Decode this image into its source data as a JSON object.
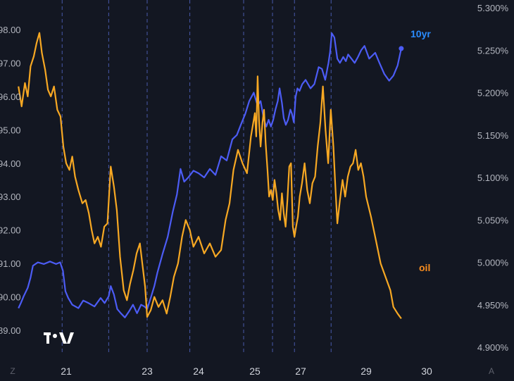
{
  "chart_data": {
    "type": "line",
    "x_ticks": [
      "21",
      "23",
      "24",
      "25",
      "27",
      "29",
      "30"
    ],
    "y_left": {
      "ticks": [
        "89.00",
        "90.00",
        "91.00",
        "92.00",
        "93.00",
        "94.00",
        "95.00",
        "96.00",
        "97.00",
        "98.00"
      ],
      "range": [
        88.6,
        98.7
      ]
    },
    "y_right": {
      "ticks": [
        "4.900%",
        "4.950%",
        "5.000%",
        "5.050%",
        "5.100%",
        "5.150%",
        "5.200%",
        "5.250%",
        "5.300%"
      ],
      "range": [
        4.888,
        5.311
      ]
    },
    "x_range": [
      19.8,
      30.9
    ],
    "session_separators": [
      20.9,
      22.05,
      23.0,
      23.83,
      24.8,
      25.77,
      26.73,
      27.93
    ],
    "series": [
      {
        "name": "10yr",
        "axis": "right",
        "color": "#4c5cf5",
        "label_color": "#2a8cff",
        "points": [
          [
            19.82,
            4.946
          ],
          [
            19.88,
            4.952
          ],
          [
            19.95,
            4.96
          ],
          [
            20.05,
            4.97
          ],
          [
            20.12,
            4.982
          ],
          [
            20.18,
            4.996
          ],
          [
            20.3,
            5.0
          ],
          [
            20.45,
            4.998
          ],
          [
            20.6,
            5.001
          ],
          [
            20.75,
            4.998
          ],
          [
            20.85,
            5.0
          ],
          [
            20.92,
            4.99
          ],
          [
            20.98,
            4.966
          ],
          [
            21.05,
            4.958
          ],
          [
            21.15,
            4.95
          ],
          [
            21.3,
            4.946
          ],
          [
            21.42,
            4.955
          ],
          [
            21.55,
            4.952
          ],
          [
            21.7,
            4.948
          ],
          [
            21.85,
            4.958
          ],
          [
            21.95,
            4.952
          ],
          [
            22.05,
            4.96
          ],
          [
            22.1,
            4.972
          ],
          [
            22.18,
            4.962
          ],
          [
            22.26,
            4.945
          ],
          [
            22.35,
            4.94
          ],
          [
            22.45,
            4.935
          ],
          [
            22.55,
            4.942
          ],
          [
            22.65,
            4.95
          ],
          [
            22.75,
            4.94
          ],
          [
            22.85,
            4.95
          ],
          [
            22.93,
            4.948
          ],
          [
            23.0,
            4.945
          ],
          [
            23.08,
            4.96
          ],
          [
            23.14,
            4.972
          ],
          [
            23.2,
            4.988
          ],
          [
            23.3,
            5.01
          ],
          [
            23.4,
            5.03
          ],
          [
            23.5,
            5.06
          ],
          [
            23.58,
            5.08
          ],
          [
            23.65,
            5.11
          ],
          [
            23.72,
            5.095
          ],
          [
            23.8,
            5.1
          ],
          [
            23.9,
            5.108
          ],
          [
            24.0,
            5.105
          ],
          [
            24.1,
            5.1
          ],
          [
            24.2,
            5.11
          ],
          [
            24.3,
            5.103
          ],
          [
            24.4,
            5.125
          ],
          [
            24.5,
            5.12
          ],
          [
            24.6,
            5.145
          ],
          [
            24.68,
            5.15
          ],
          [
            24.75,
            5.162
          ],
          [
            24.83,
            5.175
          ],
          [
            24.9,
            5.19
          ],
          [
            24.98,
            5.2
          ],
          [
            25.08,
            5.188
          ],
          [
            25.15,
            5.186
          ],
          [
            25.25,
            5.19
          ],
          [
            25.33,
            5.178
          ],
          [
            25.4,
            5.168
          ],
          [
            25.5,
            5.16
          ],
          [
            25.6,
            5.168
          ],
          [
            25.7,
            5.16
          ],
          [
            25.8,
            5.168
          ],
          [
            25.9,
            5.18
          ],
          [
            26.0,
            5.19
          ],
          [
            26.08,
            5.205
          ],
          [
            26.18,
            5.188
          ],
          [
            26.26,
            5.17
          ],
          [
            26.35,
            5.162
          ],
          [
            26.45,
            5.168
          ],
          [
            26.55,
            5.18
          ],
          [
            26.62,
            5.175
          ],
          [
            26.7,
            5.165
          ],
          [
            26.78,
            5.195
          ],
          [
            26.86,
            5.205
          ],
          [
            26.95,
            5.202
          ],
          [
            27.05,
            5.21
          ],
          [
            27.15,
            5.215
          ],
          [
            27.3,
            5.205
          ],
          [
            27.42,
            5.21
          ],
          [
            27.55,
            5.23
          ],
          [
            27.65,
            5.228
          ],
          [
            27.75,
            5.215
          ],
          [
            27.85,
            5.235
          ],
          [
            27.9,
            5.248
          ],
          [
            27.95,
            5.27
          ],
          [
            28.03,
            5.265
          ],
          [
            28.12,
            5.24
          ],
          [
            28.2,
            5.235
          ],
          [
            28.3,
            5.242
          ],
          [
            28.38,
            5.237
          ],
          [
            28.45,
            5.245
          ],
          [
            28.55,
            5.24
          ],
          [
            28.65,
            5.235
          ],
          [
            28.75,
            5.242
          ],
          [
            28.85,
            5.25
          ],
          [
            28.95,
            5.255
          ],
          [
            29.05,
            5.24
          ],
          [
            29.15,
            5.247
          ],
          [
            29.22,
            5.235
          ],
          [
            29.3,
            5.222
          ],
          [
            29.38,
            5.214
          ],
          [
            29.45,
            5.22
          ],
          [
            29.52,
            5.232
          ],
          [
            29.58,
            5.252
          ]
        ]
      },
      {
        "name": "oil",
        "axis": "left",
        "color": "#f7a823",
        "label_color": "#f78c1e",
        "points": [
          [
            19.82,
            96.3
          ],
          [
            19.9,
            95.7
          ],
          [
            19.98,
            96.4
          ],
          [
            20.05,
            96.0
          ],
          [
            20.12,
            96.9
          ],
          [
            20.2,
            97.2
          ],
          [
            20.27,
            97.6
          ],
          [
            20.34,
            97.9
          ],
          [
            20.4,
            97.3
          ],
          [
            20.48,
            96.8
          ],
          [
            20.55,
            96.2
          ],
          [
            20.62,
            96.0
          ],
          [
            20.7,
            96.3
          ],
          [
            20.78,
            95.6
          ],
          [
            20.86,
            95.4
          ],
          [
            20.93,
            94.5
          ],
          [
            21.0,
            94.0
          ],
          [
            21.08,
            93.8
          ],
          [
            21.15,
            94.2
          ],
          [
            21.22,
            93.6
          ],
          [
            21.3,
            93.2
          ],
          [
            21.4,
            92.8
          ],
          [
            21.48,
            92.9
          ],
          [
            21.56,
            92.5
          ],
          [
            21.63,
            92.0
          ],
          [
            21.7,
            91.6
          ],
          [
            21.78,
            91.8
          ],
          [
            21.86,
            91.5
          ],
          [
            21.94,
            92.1
          ],
          [
            22.02,
            92.2
          ],
          [
            22.1,
            93.9
          ],
          [
            22.18,
            93.3
          ],
          [
            22.25,
            92.6
          ],
          [
            22.33,
            91.2
          ],
          [
            22.42,
            90.2
          ],
          [
            22.5,
            89.9
          ],
          [
            22.58,
            90.4
          ],
          [
            22.66,
            90.8
          ],
          [
            22.74,
            91.3
          ],
          [
            22.82,
            91.6
          ],
          [
            22.88,
            91.0
          ],
          [
            22.95,
            90.3
          ],
          [
            23.0,
            89.4
          ],
          [
            23.07,
            89.6
          ],
          [
            23.14,
            90.0
          ],
          [
            23.22,
            89.7
          ],
          [
            23.3,
            89.9
          ],
          [
            23.38,
            89.5
          ],
          [
            23.45,
            90.0
          ],
          [
            23.52,
            90.6
          ],
          [
            23.6,
            91.0
          ],
          [
            23.68,
            91.8
          ],
          [
            23.75,
            92.3
          ],
          [
            23.83,
            92.0
          ],
          [
            23.9,
            91.5
          ],
          [
            24.0,
            91.8
          ],
          [
            24.1,
            91.3
          ],
          [
            24.2,
            91.6
          ],
          [
            24.3,
            91.2
          ],
          [
            24.4,
            91.4
          ],
          [
            24.48,
            92.3
          ],
          [
            24.55,
            92.8
          ],
          [
            24.62,
            93.8
          ],
          [
            24.7,
            94.4
          ],
          [
            24.78,
            94.0
          ],
          [
            24.86,
            93.7
          ],
          [
            24.93,
            94.8
          ],
          [
            25.0,
            95.5
          ],
          [
            25.06,
            94.8
          ],
          [
            25.12,
            96.6
          ],
          [
            25.18,
            95.3
          ],
          [
            25.25,
            94.5
          ],
          [
            25.33,
            95.2
          ],
          [
            25.4,
            95.6
          ],
          [
            25.47,
            94.6
          ],
          [
            25.55,
            93.8
          ],
          [
            25.62,
            93.0
          ],
          [
            25.7,
            93.2
          ],
          [
            25.78,
            92.9
          ],
          [
            25.86,
            93.5
          ],
          [
            25.94,
            93.1
          ],
          [
            26.02,
            92.6
          ],
          [
            26.1,
            92.3
          ],
          [
            26.18,
            93.1
          ],
          [
            26.26,
            92.5
          ],
          [
            26.34,
            92.1
          ],
          [
            26.42,
            92.9
          ],
          [
            26.5,
            93.9
          ],
          [
            26.58,
            94.0
          ],
          [
            26.66,
            92.1
          ],
          [
            26.73,
            91.8
          ],
          [
            26.8,
            92.1
          ],
          [
            26.88,
            92.4
          ],
          [
            26.96,
            93.0
          ],
          [
            27.04,
            93.4
          ],
          [
            27.12,
            94.0
          ],
          [
            27.2,
            93.2
          ],
          [
            27.28,
            92.8
          ],
          [
            27.36,
            93.4
          ],
          [
            27.44,
            93.6
          ],
          [
            27.52,
            94.5
          ],
          [
            27.6,
            95.2
          ],
          [
            27.68,
            96.3
          ],
          [
            27.76,
            95.0
          ],
          [
            27.84,
            94.0
          ],
          [
            27.92,
            95.6
          ],
          [
            28.0,
            94.5
          ],
          [
            28.06,
            93.3
          ],
          [
            28.12,
            92.2
          ],
          [
            28.2,
            92.9
          ],
          [
            28.28,
            93.5
          ],
          [
            28.36,
            93.0
          ],
          [
            28.44,
            93.6
          ],
          [
            28.52,
            93.9
          ],
          [
            28.6,
            94.0
          ],
          [
            28.68,
            94.4
          ],
          [
            28.76,
            93.8
          ],
          [
            28.84,
            94.0
          ],
          [
            28.92,
            93.6
          ],
          [
            29.0,
            93.0
          ],
          [
            29.08,
            92.4
          ],
          [
            29.16,
            91.7
          ],
          [
            29.24,
            91.0
          ],
          [
            29.32,
            90.6
          ],
          [
            29.4,
            90.2
          ],
          [
            29.45,
            89.7
          ],
          [
            29.52,
            89.5
          ],
          [
            29.58,
            89.35
          ]
        ]
      }
    ],
    "legend": "right-edge labels"
  },
  "ui": {
    "corner_left": "Z",
    "corner_right": "A"
  }
}
